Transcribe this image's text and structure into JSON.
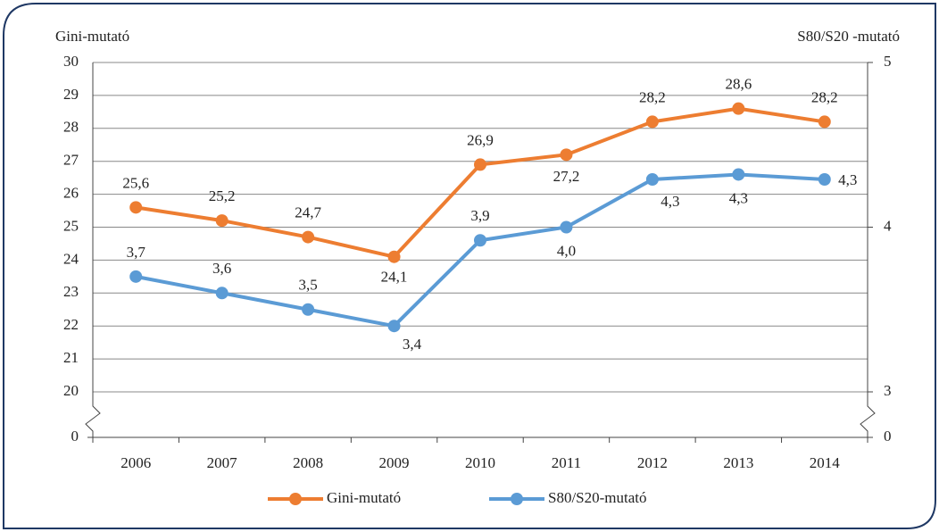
{
  "chart_data": {
    "type": "line",
    "y_axis_label": "Gini-mutató",
    "y2_axis_label": "S80/S20 -mutató",
    "categories": [
      "2006",
      "2007",
      "2008",
      "2009",
      "2010",
      "2011",
      "2012",
      "2013",
      "2014"
    ],
    "series": [
      {
        "name": "Gini-mutató",
        "color": "#ed7d31",
        "axis": "y",
        "values": [
          25.6,
          25.2,
          24.7,
          24.1,
          26.9,
          27.2,
          28.2,
          28.6,
          28.2
        ],
        "value_labels": [
          "25,6",
          "25,2",
          "24,7",
          "24,1",
          "26,9",
          "27,2",
          "28,2",
          "28,6",
          "28,2"
        ]
      },
      {
        "name": "S80/S20-mutató",
        "color": "#5b9bd5",
        "axis": "y2",
        "values": [
          3.7,
          3.6,
          3.5,
          3.4,
          3.92,
          4.0,
          4.29,
          4.32,
          4.29
        ],
        "value_labels": [
          "3,7",
          "3,6",
          "3,5",
          "3,4",
          "3,9",
          "4,0",
          "4,3",
          "4,3",
          "4,3"
        ]
      }
    ],
    "ylim": [
      20,
      30
    ],
    "yticks": [
      0,
      20,
      21,
      22,
      23,
      24,
      25,
      26,
      27,
      28,
      29,
      30
    ],
    "y2lim": [
      3,
      5
    ],
    "y2ticks": [
      0,
      3,
      4,
      5
    ],
    "axis_break": true,
    "grid": true,
    "legend": "bottom"
  }
}
